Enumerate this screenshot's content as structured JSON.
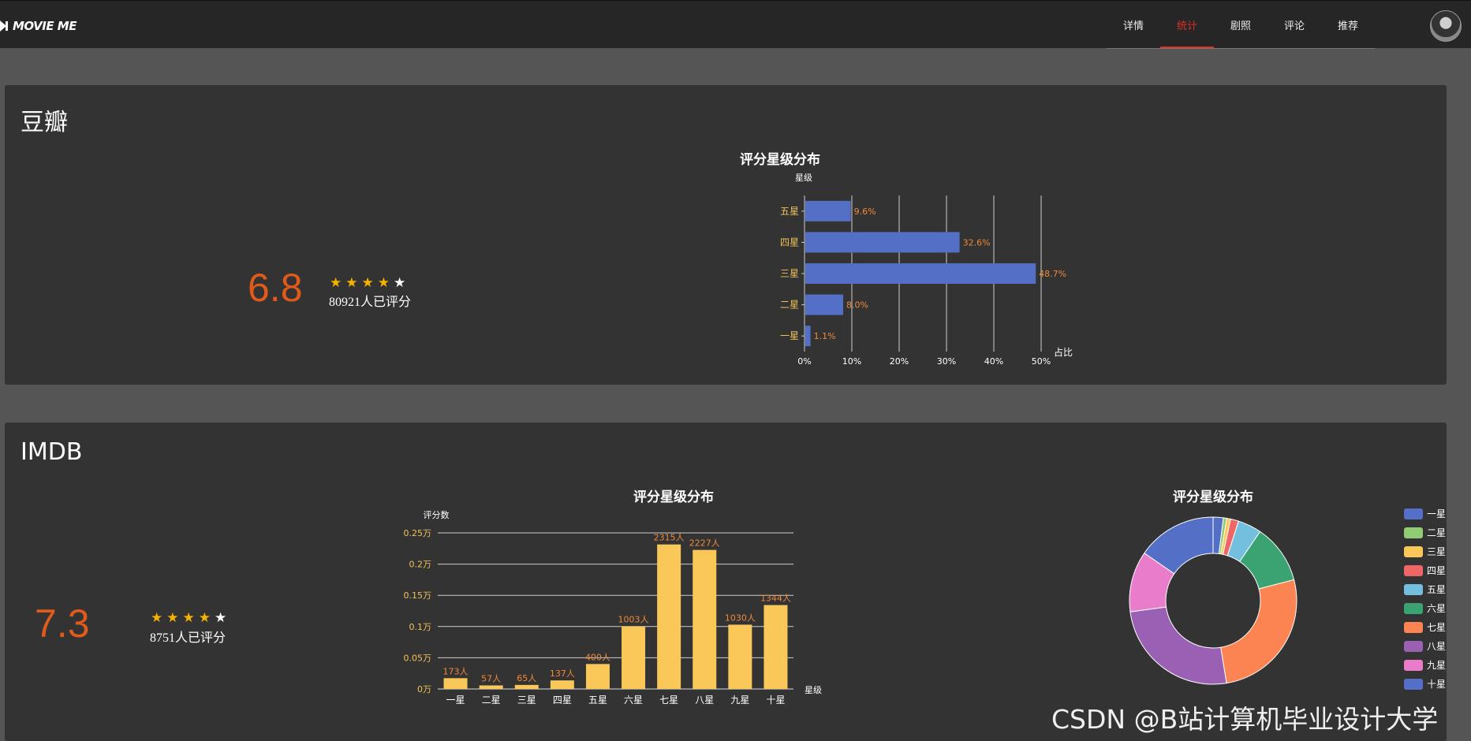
{
  "app": {
    "logo_text": "MOVIE ME"
  },
  "nav": {
    "items": [
      {
        "label": "详情",
        "active": false
      },
      {
        "label": "统计",
        "active": true
      },
      {
        "label": "剧照",
        "active": false
      },
      {
        "label": "评论",
        "active": false
      },
      {
        "label": "推荐",
        "active": false
      }
    ]
  },
  "douban": {
    "title": "豆瓣",
    "score": "6.8",
    "stars_filled": 4,
    "stars_total": 5,
    "rating_count": "80921人已评分"
  },
  "imdb": {
    "title": "IMDB",
    "score": "7.3",
    "stars_filled": 4,
    "stars_total": 5,
    "rating_count": "8751人已评分"
  },
  "colors": {
    "bar_blue": "#5470c6",
    "bar_yellow": "#fac858",
    "label_orange": "#ee8a3a",
    "tick_yellow": "#f3c35a"
  },
  "chart_data": [
    {
      "type": "bar",
      "orientation": "horizontal",
      "title": "评分星级分布",
      "ylabel": "星级",
      "xlabel": "占比",
      "categories": [
        "一星",
        "二星",
        "三星",
        "四星",
        "五星"
      ],
      "values": [
        1.1,
        8.0,
        48.7,
        32.6,
        9.6
      ],
      "data_labels": [
        "1.1%",
        "8.0%",
        "48.7%",
        "32.6%",
        "9.6%"
      ],
      "x_ticks": [
        "0%",
        "10%",
        "20%",
        "30%",
        "40%",
        "50%"
      ],
      "xlim": [
        0,
        50
      ],
      "grid": true
    },
    {
      "type": "bar",
      "title": "评分星级分布",
      "ylabel": "评分数",
      "xlabel": "星级",
      "categories": [
        "一星",
        "二星",
        "三星",
        "四星",
        "五星",
        "六星",
        "七星",
        "八星",
        "九星",
        "十星"
      ],
      "values": [
        173,
        57,
        65,
        137,
        400,
        1003,
        2315,
        2227,
        1030,
        1344
      ],
      "data_labels": [
        "173人",
        "57人",
        "65人",
        "137人",
        "400人",
        "1003人",
        "2315人",
        "2227人",
        "1030人",
        "1344人"
      ],
      "y_ticks": [
        "0万",
        "0.05万",
        "0.1万",
        "0.15万",
        "0.2万",
        "0.25万"
      ],
      "ylim": [
        0,
        2500
      ],
      "grid": true
    },
    {
      "type": "pie",
      "subtype": "donut",
      "title": "评分星级分布",
      "legend_position": "right",
      "categories": [
        "一星",
        "二星",
        "三星",
        "四星",
        "五星",
        "六星",
        "七星",
        "八星",
        "九星",
        "十星"
      ],
      "values": [
        173,
        57,
        65,
        137,
        400,
        1003,
        2315,
        2227,
        1030,
        1344
      ],
      "colors": [
        "#5470c6",
        "#91cc75",
        "#fac858",
        "#ee6666",
        "#73c0de",
        "#3ba272",
        "#fc8452",
        "#9a60b4",
        "#ea7ccc",
        "#5470c6"
      ]
    }
  ],
  "watermark": "CSDN @B站计算机毕业设计大学"
}
